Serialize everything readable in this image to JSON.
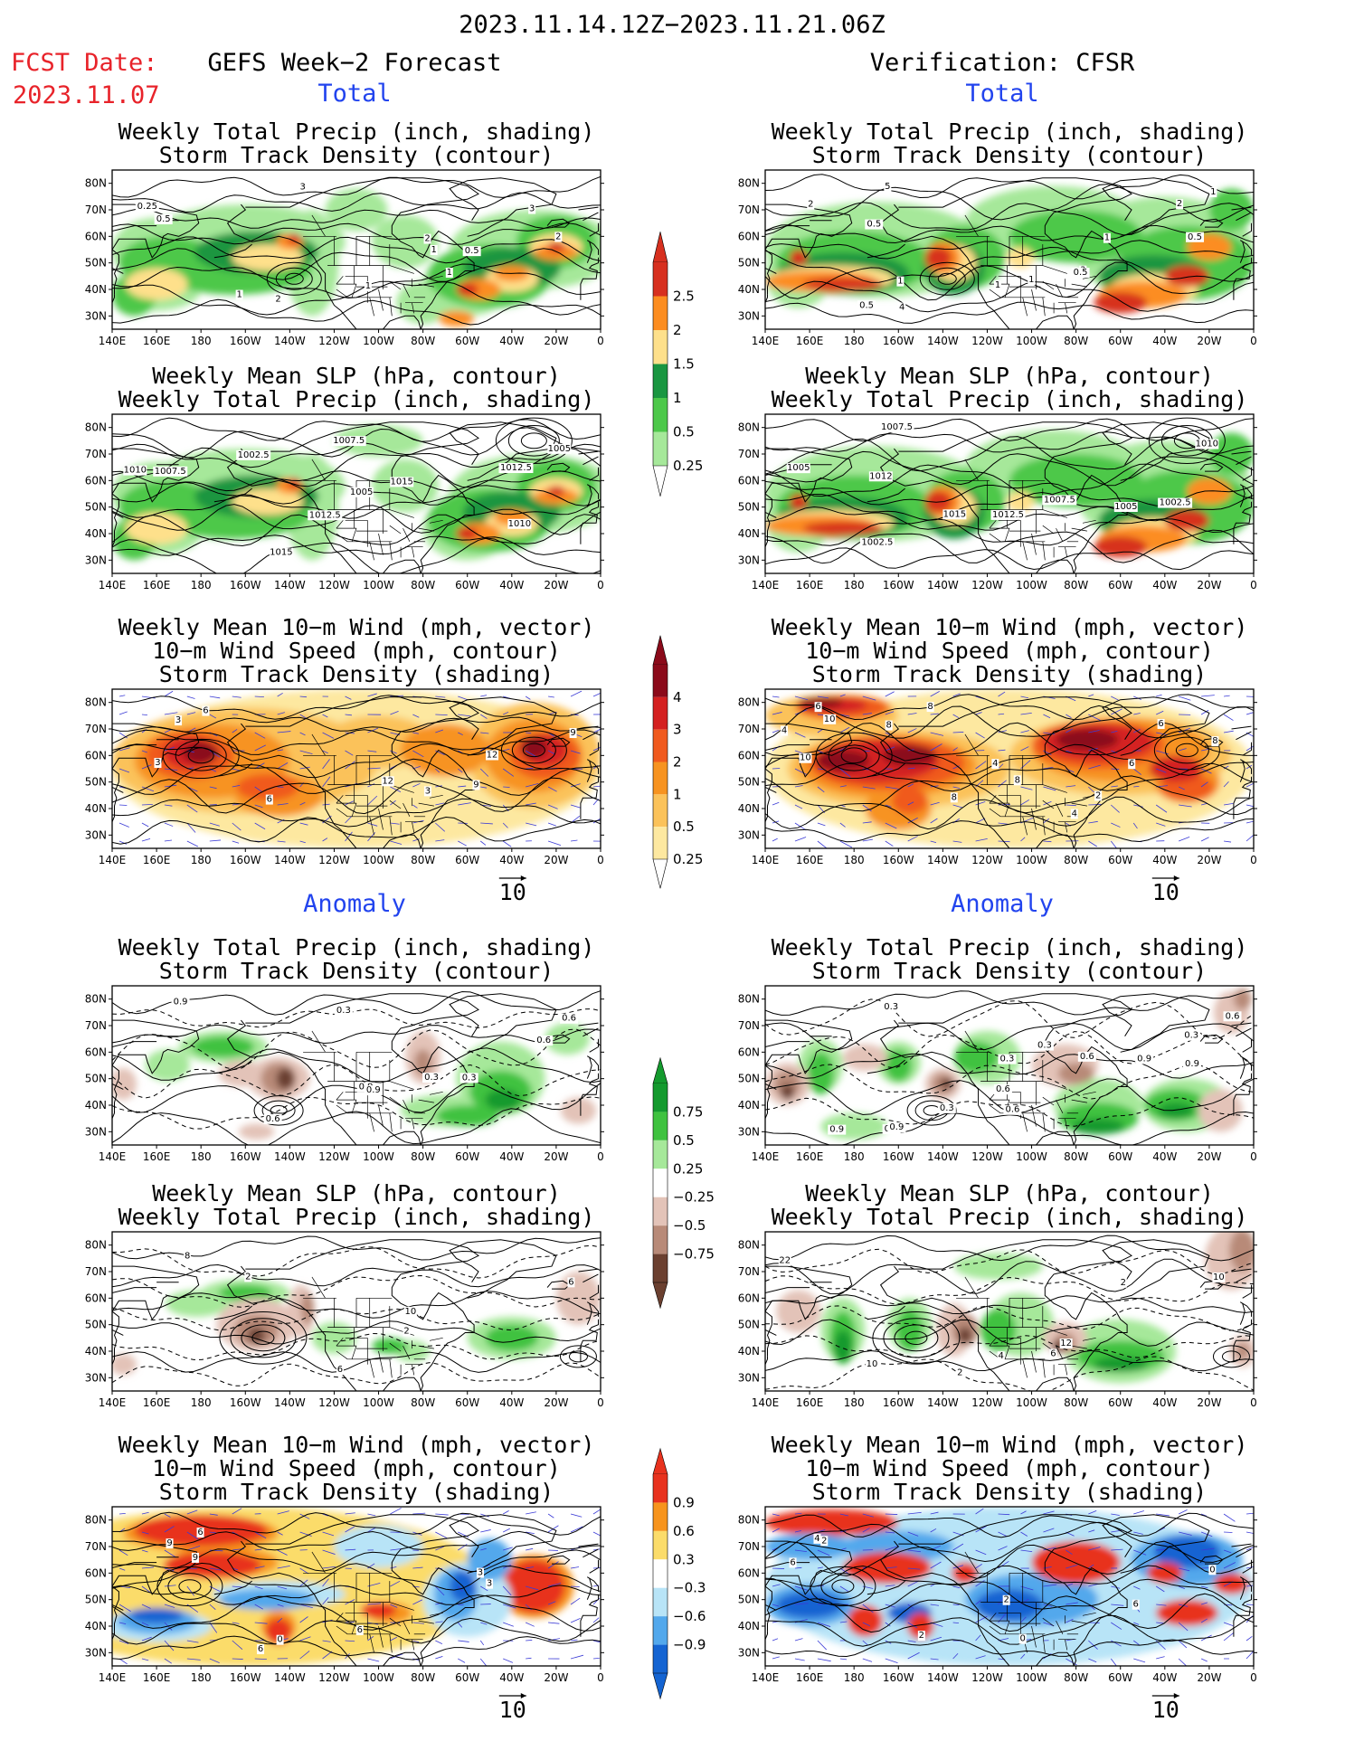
{
  "header": {
    "date_range": "2023.11.14.12Z−2023.11.21.06Z",
    "fcst_date_label": "FCST Date:",
    "fcst_date_value": "2023.11.07",
    "left_title": "GEFS Week−2 Forecast",
    "right_title": "Verification: CFSR",
    "section_total": "Total",
    "section_anomaly": "Anomaly"
  },
  "colors": {
    "section_label": "#2244ee",
    "fcst_date": "#e8232a"
  },
  "axes": {
    "lat_labels": [
      "80N",
      "70N",
      "60N",
      "50N",
      "40N",
      "30N"
    ],
    "lon_labels": [
      "140E",
      "160E",
      "180",
      "160W",
      "140W",
      "120W",
      "100W",
      "80W",
      "60W",
      "40W",
      "20W",
      "0"
    ]
  },
  "panel_titles": {
    "precip_storm": [
      "Weekly Total Precip (inch, shading)",
      "Storm Track Density (contour)"
    ],
    "slp_precip": [
      "Weekly Mean SLP (hPa, contour)",
      "Weekly Total Precip (inch, shading)"
    ],
    "wind_storm": [
      "Weekly Mean 10−m Wind (mph, vector)",
      "10−m Wind Speed (mph, contour)",
      "Storm Track Density (shading)"
    ]
  },
  "vector_reference": "10",
  "colorbars": {
    "total_precip": {
      "labels": [
        "2.5",
        "2",
        "1.5",
        "1",
        "0.5",
        "0.25"
      ],
      "colors": [
        "#d7301f",
        "#fc8d20",
        "#fee08b",
        "#1a9641",
        "#4dc84a",
        "#a6e89a"
      ]
    },
    "total_storm": {
      "labels": [
        "4",
        "3",
        "2",
        "1",
        "0.5",
        "0.25"
      ],
      "colors": [
        "#8b0a1a",
        "#d42020",
        "#f05a1e",
        "#f79320",
        "#fbc25a",
        "#fde8a0"
      ]
    },
    "anom_precip": {
      "labels": [
        "0.75",
        "0.5",
        "0.25",
        "−0.25",
        "−0.5",
        "−0.75"
      ],
      "colors": [
        "#149a2e",
        "#3fc23f",
        "#a6e89a",
        "#ffffff",
        "#e3c3b8",
        "#b88a78",
        "#6b4030"
      ]
    },
    "anom_storm": {
      "labels": [
        "0.9",
        "0.6",
        "0.3",
        "−0.3",
        "−0.6",
        "−0.9"
      ],
      "colors": [
        "#e8321e",
        "#f7941d",
        "#fbdc6a",
        "#ffffff",
        "#b8e4f7",
        "#52a8ec",
        "#1464d2"
      ]
    }
  },
  "contour_labels": {
    "L1": [
      "0.5",
      "2",
      "1",
      "3",
      "1",
      "2",
      "0.5",
      "1",
      "0.25",
      "1",
      "3",
      "2"
    ],
    "R1": [
      "0.5",
      "3",
      "1",
      "2",
      "0.5",
      "4",
      "0.5",
      "1",
      "2",
      "1",
      "5",
      "1",
      "1",
      "0.5"
    ],
    "L2": [
      "1007.5",
      "1010",
      "1007.5",
      "1005",
      "1005",
      "1002.5",
      "1012.5",
      "1012.5",
      "1010",
      "1015",
      "1015"
    ],
    "R2": [
      "1012",
      "1002.5",
      "1007.5",
      "1010",
      "1012.5",
      "1002.5",
      "1005",
      "1015",
      "1005",
      "1007.5"
    ],
    "L3": [
      "3",
      "9",
      "6",
      "3",
      "3",
      "6",
      "12",
      "12",
      "9"
    ],
    "R3": [
      "8",
      "6",
      "8",
      "10",
      "4",
      "10",
      "8",
      "8",
      "4",
      "2",
      "8",
      "6",
      "4",
      "6"
    ],
    "L4": [
      "0.9",
      "0.3",
      "0.3",
      "0.6",
      "0.9",
      "0.6",
      "0.3",
      "0.9",
      "0.6"
    ],
    "R4": [
      "0.3",
      "0.6",
      "0.6",
      "0.3",
      "0.6",
      "0.9",
      "0.9",
      "0.6",
      "0.6",
      "0.3",
      "0.3",
      "0.9",
      "0.3",
      "0.9"
    ],
    "L5": [
      "8",
      "10",
      "6",
      "6",
      "2",
      "2"
    ],
    "R5": [
      "22",
      "12",
      "4",
      "10",
      "6",
      "10",
      "2",
      "2"
    ],
    "L6": [
      "9",
      "3",
      "6",
      "9",
      "6",
      "6",
      "3",
      "0"
    ],
    "R6": [
      "6",
      "6",
      "2",
      "4",
      "2",
      "2",
      "0",
      "0"
    ]
  }
}
